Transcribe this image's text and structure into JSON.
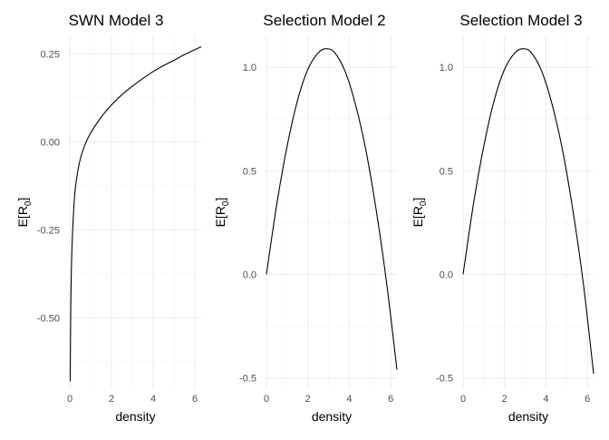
{
  "chart_data": [
    {
      "type": "line",
      "title": "SWN Model 3",
      "xlabel": "density",
      "ylabel": "E[R",
      "ylabel_sub": "0",
      "ylabel_close": "]",
      "xlim": [
        0,
        6.3
      ],
      "ylim": [
        -0.7,
        0.3
      ],
      "x_ticks": [
        0,
        2,
        4,
        6
      ],
      "x_tick_labels": [
        "0",
        "2",
        "4",
        "6"
      ],
      "y_ticks": [
        0.25,
        0.0,
        -0.25,
        -0.5
      ],
      "y_tick_labels": [
        "0.25",
        "0.00",
        "-0.25",
        "-0.50"
      ],
      "grid": true,
      "series": [
        {
          "x": [
            0.02,
            0.05,
            0.1,
            0.2,
            0.3,
            0.5,
            0.75,
            1.0,
            1.5,
            2.0,
            2.5,
            3.0,
            3.5,
            4.0,
            4.5,
            5.0,
            5.5,
            6.0,
            6.3
          ],
          "y": [
            -0.68,
            -0.46,
            -0.31,
            -0.18,
            -0.115,
            -0.05,
            -0.005,
            0.025,
            0.07,
            0.105,
            0.134,
            0.158,
            0.18,
            0.2,
            0.217,
            0.232,
            0.248,
            0.262,
            0.27
          ]
        }
      ]
    },
    {
      "type": "line",
      "title": "Selection Model 2",
      "xlabel": "density",
      "ylabel": "E[R",
      "ylabel_sub": "0",
      "ylabel_close": "]",
      "xlim": [
        0,
        6.3
      ],
      "ylim": [
        -0.55,
        1.15
      ],
      "x_ticks": [
        0,
        2,
        4,
        6
      ],
      "x_tick_labels": [
        "0",
        "2",
        "4",
        "6"
      ],
      "y_ticks": [
        1.0,
        0.5,
        0.0,
        -0.5
      ],
      "y_tick_labels": [
        "1.0",
        "0.5",
        "0.0",
        "-0.5"
      ],
      "grid": true,
      "series": [
        {
          "x": [
            0,
            0.5,
            1.0,
            1.5,
            2.0,
            2.5,
            2.9,
            3.3,
            3.8,
            4.3,
            4.8,
            5.3,
            5.8,
            6.3
          ],
          "y": [
            0.0,
            0.34,
            0.62,
            0.84,
            0.99,
            1.07,
            1.09,
            1.07,
            0.98,
            0.82,
            0.6,
            0.31,
            -0.04,
            -0.46
          ]
        }
      ]
    },
    {
      "type": "line",
      "title": "Selection Model 3",
      "xlabel": "density",
      "ylabel": "E[R",
      "ylabel_sub": "0",
      "ylabel_close": "]",
      "xlim": [
        0,
        6.3
      ],
      "ylim": [
        -0.55,
        1.15
      ],
      "x_ticks": [
        0,
        2,
        4,
        6
      ],
      "x_tick_labels": [
        "0",
        "2",
        "4",
        "6"
      ],
      "y_ticks": [
        1.0,
        0.5,
        0.0,
        -0.5
      ],
      "y_tick_labels": [
        "1.0",
        "0.5",
        "0.0",
        "-0.5"
      ],
      "grid": true,
      "series": [
        {
          "x": [
            0,
            0.5,
            1.0,
            1.5,
            2.0,
            2.5,
            2.9,
            3.3,
            3.8,
            4.3,
            4.8,
            5.3,
            5.8,
            6.3
          ],
          "y": [
            0.0,
            0.34,
            0.62,
            0.84,
            0.99,
            1.07,
            1.09,
            1.07,
            0.98,
            0.82,
            0.6,
            0.31,
            -0.04,
            -0.48
          ]
        }
      ]
    }
  ]
}
